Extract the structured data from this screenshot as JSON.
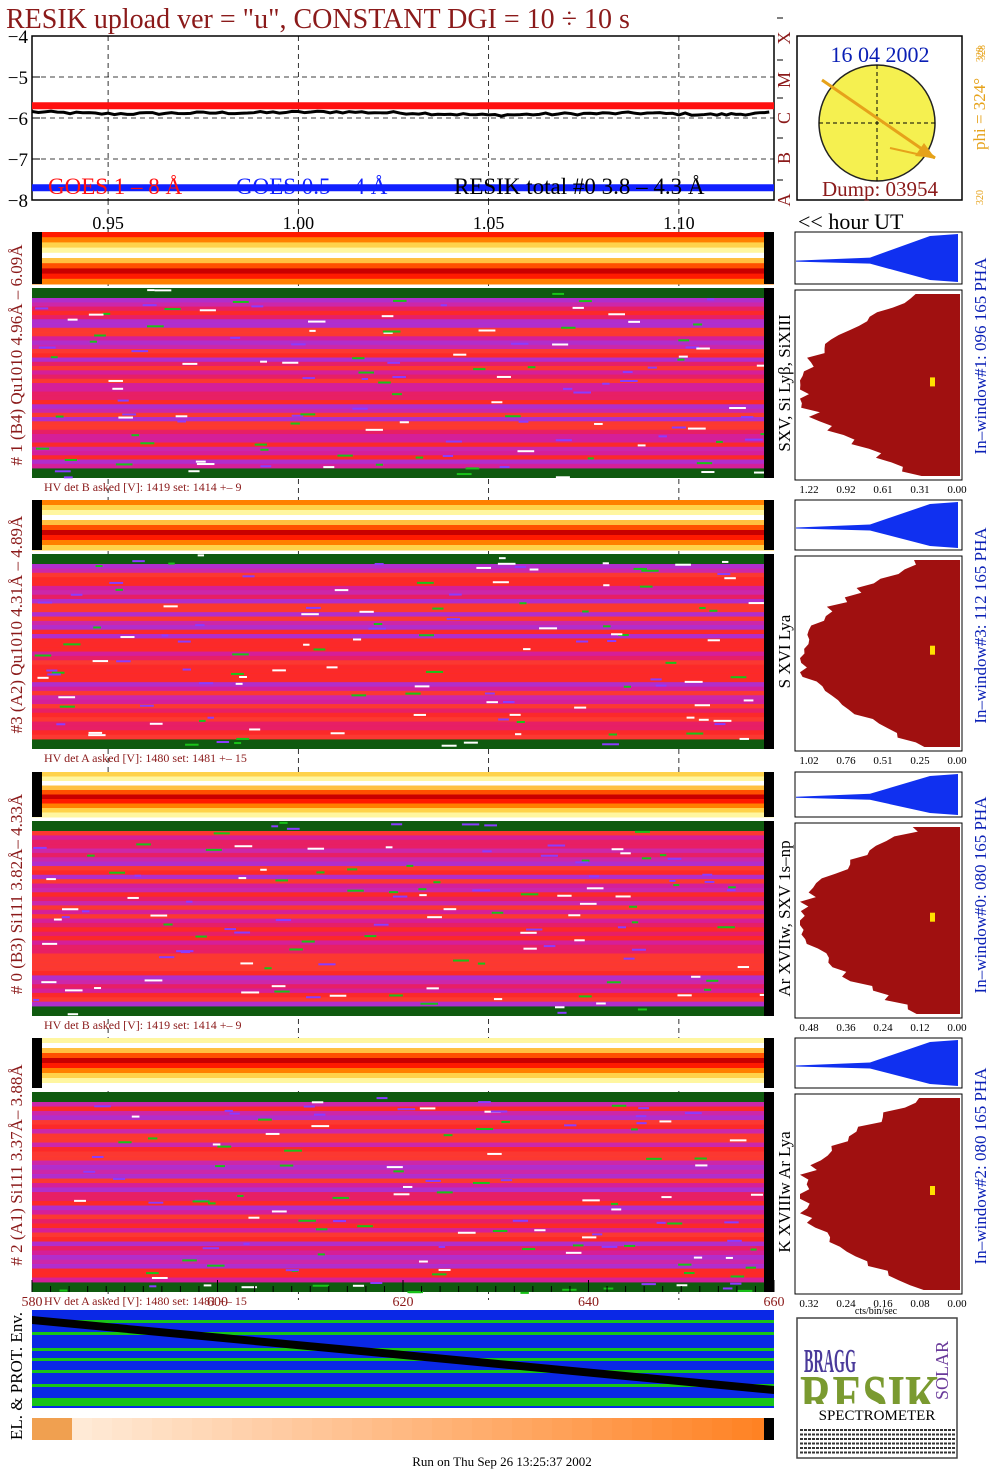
{
  "header": {
    "title": "RESIK upload ver = \"u\", CONSTANT  DGI =  10 ÷  10 s",
    "footer": "Run on Thu Sep 26 13:25:37 2002"
  },
  "colors": {
    "goes_long": "#ff1010",
    "goes_short": "#1020ff",
    "resik_total": "#000000",
    "label_maroon": "#8b1a1a",
    "label_blue": "#0a1fb5",
    "pha_fill": "#a01010",
    "pha_top": "#1030f0",
    "env_band": "#0a28e6",
    "env_green": "#19c319",
    "sun": "#f5f050"
  },
  "top_plot": {
    "legend": [
      "GOES 1 – 8 Å",
      "GOES 0.5 – 4 Å",
      "RESIK total #0  3.8 – 4.3 Å"
    ],
    "flare_classes": [
      "A",
      "B",
      "C",
      "M",
      "X"
    ]
  },
  "sun_panel": {
    "date": "16 04 2002",
    "dump": "Dump: 03954",
    "phi": "phi = 324°",
    "phi_sub": "328",
    "phi_sup": "328",
    "phi_low": "320"
  },
  "axis_labels": {
    "hour_ut": "<< hour UT",
    "cts_label": "cts/bin/sec",
    "env_label": "EL. & PROT. Env."
  },
  "chart_data": {
    "type": "line",
    "title": "RESIK upload ver = \"u\", CONSTANT  DGI =  10 ÷  10 s",
    "x_ticks": [
      "0.95",
      "1.00",
      "1.05",
      "1.10"
    ],
    "xlim": [
      0.93,
      1.125
    ],
    "y_ticks": [
      "−4",
      "−5",
      "−6",
      "−7",
      "−8"
    ],
    "ylim": [
      -8,
      -4
    ],
    "series": [
      {
        "name": "GOES 1 – 8 Å",
        "x": [
          0.93,
          1.125
        ],
        "values": [
          -5.7,
          -5.7
        ]
      },
      {
        "name": "GOES 0.5 – 4 Å",
        "x": [
          0.93,
          1.125
        ],
        "values": [
          -7.7,
          -7.7
        ]
      },
      {
        "name": "RESIK total #0  3.8 – 4.3 Å",
        "x": [
          0.93,
          0.95,
          0.97,
          0.99,
          1.01,
          1.03,
          1.05,
          1.07,
          1.09,
          1.11,
          1.125
        ],
        "values": [
          -5.85,
          -5.9,
          -5.88,
          -5.87,
          -5.85,
          -5.88,
          -5.93,
          -5.9,
          -5.88,
          -5.92,
          -5.88
        ]
      }
    ],
    "bottom_x_ticks": [
      "580",
      "600",
      "620",
      "640",
      "660"
    ]
  },
  "detectors": [
    {
      "label": "# 1 (B4) Qu1010 4.96Å – 6.09Å",
      "lines": "SXV, Si Lyβ, SiXIII",
      "hv": "HV det B asked [V]:  1419 set:  1414  +–    9",
      "pha": "In–window#1:  096 165 PHA",
      "pha_ticks": [
        "1.22",
        "0.92",
        "0.61",
        "0.31",
        "0.00"
      ]
    },
    {
      "label": "#3 (A2) Qu1010  4.31Å – 4.89Å",
      "lines": "S XVI Lya",
      "hv": "HV det A asked [V]:  1480 set:  1481  +–    15",
      "pha": "In–window#3:  112 165 PHA",
      "pha_ticks": [
        "1.02",
        "0.76",
        "0.51",
        "0.25",
        "0.00"
      ]
    },
    {
      "label": "# 0 (B3) Si111  3.82Å– 4.33Å",
      "lines": "Ar XVIIw,  SXV 1s–np",
      "hv": "HV det B asked [V]:  1419 set:  1414  +–    9",
      "pha": "In–window#0:  080 165 PHA",
      "pha_ticks": [
        "0.48",
        "0.36",
        "0.24",
        "0.12",
        "0.00"
      ]
    },
    {
      "label": "# 2 (A1) Si111  3.37Å– 3.88Å",
      "lines": "K XVIIIw  Ar Lya",
      "hv": "HV det A asked [V]:  1480 set:  1481  +–    15",
      "pha": "In–window#2:  080 165 PHA",
      "pha_ticks": [
        "0.32",
        "0.24",
        "0.16",
        "0.08",
        "0.00"
      ]
    }
  ],
  "logo": {
    "big": "RESIK",
    "side": "SOLAR",
    "bragg": "BRAGG",
    "caption": "SPECTROMETER"
  }
}
